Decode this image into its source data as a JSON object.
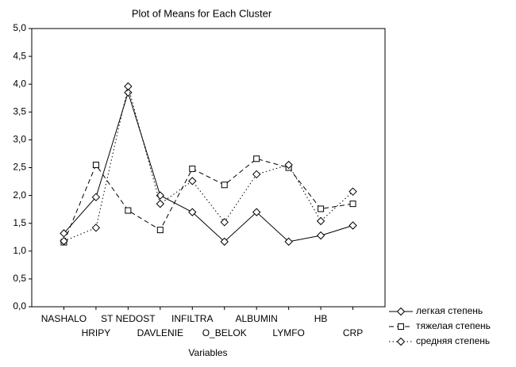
{
  "chart_data": {
    "type": "line",
    "title": "Plot of Means for Each Cluster",
    "x_label": "Variables",
    "categories": [
      "NASHALO",
      "HRIPY",
      "ST NEDOST",
      "DAVLENIE",
      "INFILTRA",
      "O_BELOK",
      "ALBUMIN",
      "LYMFO",
      "HB",
      "CRP"
    ],
    "series": [
      {
        "name": "легкая степень",
        "color": "#000000",
        "dash": "solid",
        "marker": "diamond",
        "values": [
          1.32,
          1.97,
          3.85,
          2.0,
          1.7,
          1.17,
          1.7,
          1.17,
          1.28,
          1.46
        ]
      },
      {
        "name": "тяжелая степень",
        "color": "#000000",
        "dash": "dashed",
        "marker": "square",
        "values": [
          1.16,
          2.55,
          1.73,
          1.38,
          2.48,
          2.19,
          2.66,
          2.5,
          1.76,
          1.85
        ]
      },
      {
        "name": "средняя степень",
        "color": "#000000",
        "dash": "dotted",
        "marker": "diamond",
        "values": [
          1.18,
          1.42,
          3.96,
          1.85,
          2.26,
          1.52,
          2.38,
          2.55,
          1.54,
          2.07
        ]
      }
    ],
    "ylim": [
      0,
      5
    ],
    "yticks": [
      {
        "value": 0,
        "label": "0,0"
      },
      {
        "value": 0.5,
        "label": "0,5"
      },
      {
        "value": 1,
        "label": "1,0"
      },
      {
        "value": 1.5,
        "label": "1,5"
      },
      {
        "value": 2,
        "label": "2,0"
      },
      {
        "value": 2.5,
        "label": "2,5"
      },
      {
        "value": 3,
        "label": "3,0"
      },
      {
        "value": 3.5,
        "label": "3,5"
      },
      {
        "value": 4,
        "label": "4,0"
      },
      {
        "value": 4.5,
        "label": "4,5"
      },
      {
        "value": 5,
        "label": "5,0"
      }
    ],
    "legend": "bottom-right"
  }
}
